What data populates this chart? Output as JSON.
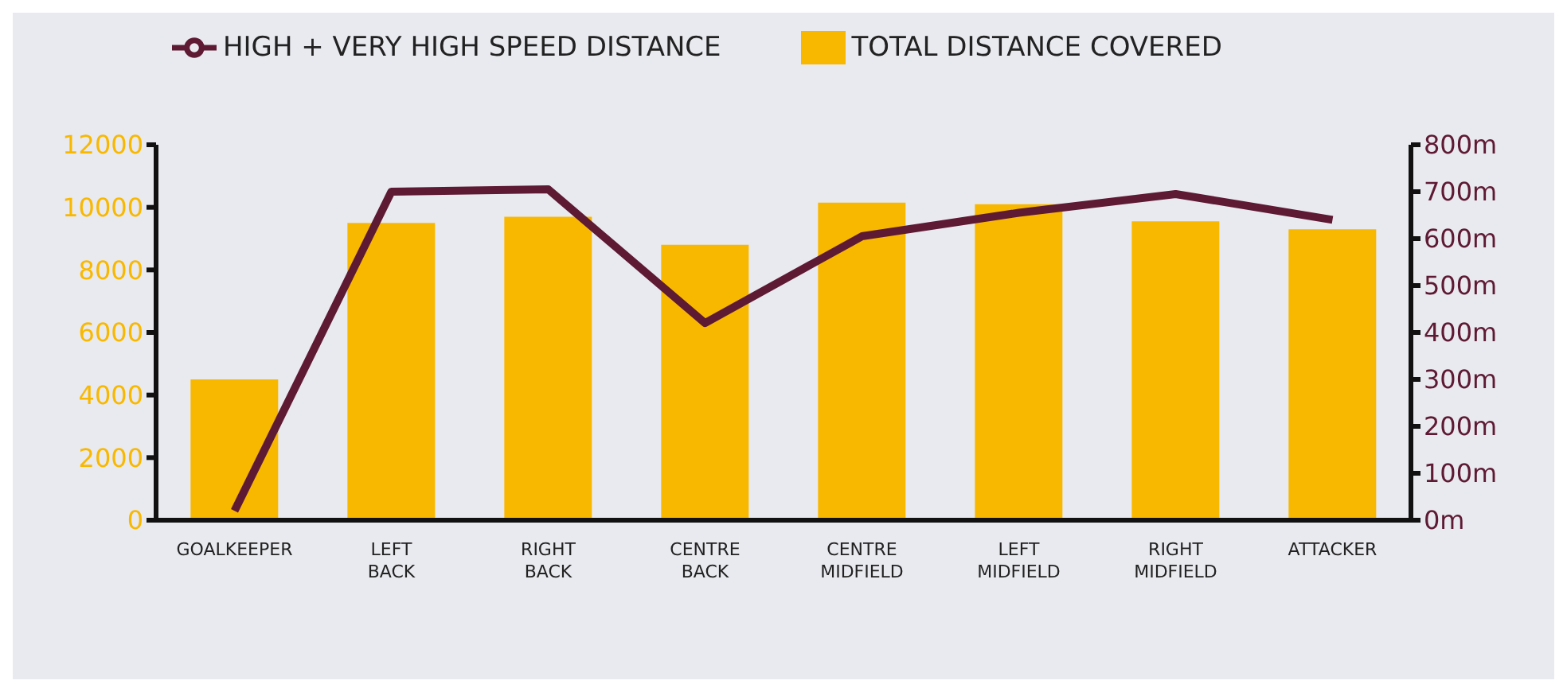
{
  "chart_data": {
    "type": "bar",
    "categories": [
      "GOALKEEPER",
      "LEFT BACK",
      "RIGHT BACK",
      "CENTRE BACK",
      "CENTRE MIDFIELD",
      "LEFT MIDFIELD",
      "RIGHT MIDFIELD",
      "ATTACKER"
    ],
    "series": [
      {
        "name": "TOTAL DISTANCE COVERED",
        "color": "#f9b800",
        "values": [
          4500,
          9500,
          9700,
          8800,
          10150,
          10100,
          9550,
          9300
        ]
      },
      {
        "name": "HIGH + VERY HIGH SPEED DISTANCE",
        "type": "line",
        "axis": "y2",
        "color": "#5e1a33",
        "values": [
          20,
          700,
          705,
          420,
          605,
          655,
          695,
          640
        ]
      }
    ],
    "ylim": [
      0,
      12000
    ],
    "yticks": [
      0,
      2000,
      4000,
      6000,
      8000,
      10000,
      12000
    ],
    "y2lim": [
      0,
      800
    ],
    "y2ticks": [
      {
        "value": 0,
        "label": "0m"
      },
      {
        "value": 100,
        "label": "100m"
      },
      {
        "value": 200,
        "label": "200m"
      },
      {
        "value": 300,
        "label": "300m"
      },
      {
        "value": 400,
        "label": "400m"
      },
      {
        "value": 500,
        "label": "500m"
      },
      {
        "value": 600,
        "label": "600m"
      },
      {
        "value": 700,
        "label": "700m"
      },
      {
        "value": 800,
        "label": "800m"
      }
    ],
    "grid": false,
    "legend": "top left",
    "marker": "none",
    "line_style": "solid"
  }
}
